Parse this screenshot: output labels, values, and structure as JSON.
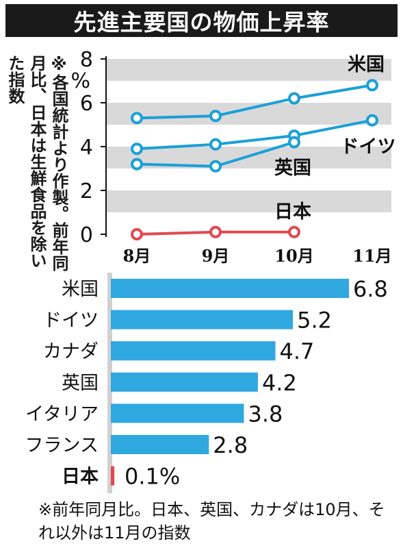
{
  "title": "先進主要国の物価上昇率",
  "note": "※各国統計より作製。前年同月比、日本は生鮮食品を除いた指数",
  "footnote": "※前年同月比。日本、英国、カナダは10月、それ以外は11月の指数",
  "colors": {
    "series": "#1aa0d8",
    "japan": "#e2484f",
    "band": "#d9d9d9",
    "bar": "#2fa8e0"
  },
  "chart_data": [
    {
      "type": "line",
      "categories": [
        "8月",
        "9月",
        "10月",
        "11月"
      ],
      "ylabel": "%",
      "ylim": [
        0,
        8
      ],
      "yticks": [
        "0",
        "2",
        "4",
        "6",
        "8"
      ],
      "series": [
        {
          "name": "米国",
          "values": [
            5.3,
            5.4,
            6.2,
            6.8
          ]
        },
        {
          "name": "ドイツ",
          "values": [
            3.9,
            4.1,
            4.5,
            5.2
          ]
        },
        {
          "name": "英国",
          "values": [
            3.2,
            3.1,
            4.2,
            null
          ]
        },
        {
          "name": "日本",
          "values": [
            0.0,
            0.1,
            0.1,
            null
          ]
        }
      ]
    },
    {
      "type": "bar",
      "orientation": "horizontal",
      "categories": [
        "米国",
        "ドイツ",
        "カナダ",
        "英国",
        "イタリア",
        "フランス",
        "日本"
      ],
      "values": [
        6.8,
        5.2,
        4.7,
        4.2,
        3.8,
        2.8,
        0.1
      ],
      "value_labels": [
        "6.8",
        "5.2",
        "4.7",
        "4.2",
        "3.8",
        "2.8",
        "0.1%"
      ]
    }
  ]
}
